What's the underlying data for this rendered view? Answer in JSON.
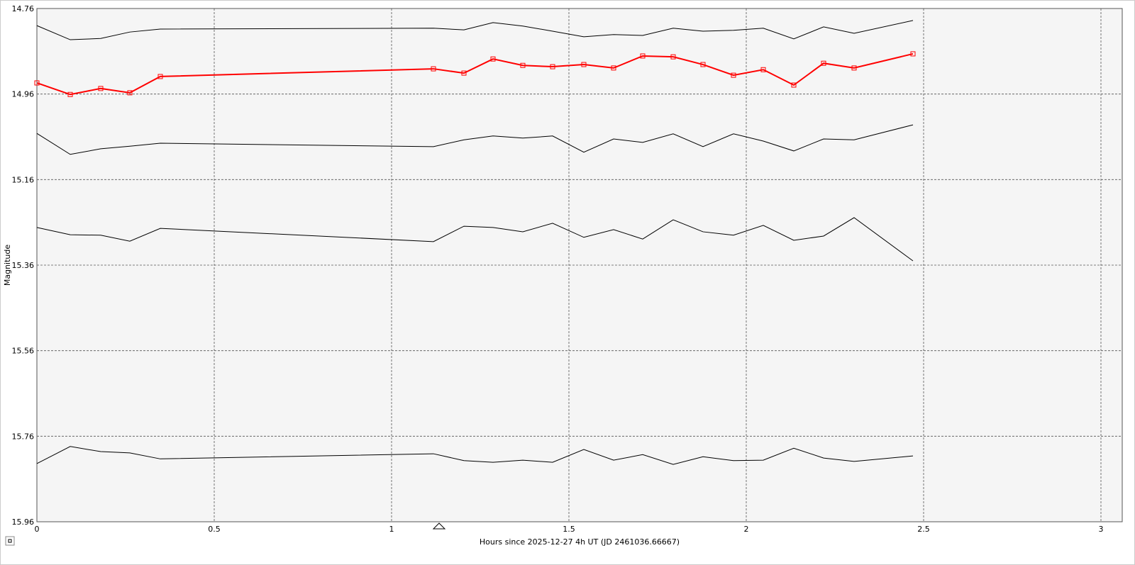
{
  "chart_data": {
    "type": "line",
    "xlabel": "Hours since 2025-12-27 4h UT (JD 2461036.66667)",
    "ylabel": "Magnitude",
    "xlim": [
      0,
      3
    ],
    "xticks": [
      0,
      0.5,
      1,
      1.5,
      2,
      2.5,
      3
    ],
    "ylim": [
      14.76,
      15.96
    ],
    "yticks": [
      14.76,
      14.96,
      15.16,
      15.36,
      15.56,
      15.76,
      15.96
    ],
    "y_inverted": true,
    "grid": true,
    "x": [
      0,
      0.094,
      0.18,
      0.262,
      0.348,
      1.118,
      1.204,
      1.286,
      1.37,
      1.454,
      1.542,
      1.626,
      1.708,
      1.794,
      1.878,
      1.964,
      2.048,
      2.134,
      2.218,
      2.304,
      2.47
    ],
    "series": [
      {
        "color": "#000000",
        "markers": false,
        "values": [
          14.8,
          14.833,
          14.83,
          14.815,
          14.808,
          14.806,
          14.81,
          14.793,
          14.801,
          14.813,
          14.826,
          14.821,
          14.823,
          14.806,
          14.813,
          14.811,
          14.806,
          14.831,
          14.803,
          14.818,
          14.788
        ]
      },
      {
        "color": "#ff0000",
        "markers": true,
        "values": [
          14.934,
          14.961,
          14.947,
          14.957,
          14.919,
          14.901,
          14.911,
          14.878,
          14.893,
          14.896,
          14.891,
          14.899,
          14.871,
          14.873,
          14.891,
          14.916,
          14.903,
          14.939,
          14.888,
          14.899,
          14.866
        ]
      },
      {
        "color": "#000000",
        "markers": false,
        "values": [
          15.052,
          15.101,
          15.088,
          15.082,
          15.075,
          15.083,
          15.067,
          15.058,
          15.063,
          15.058,
          15.096,
          15.065,
          15.073,
          15.053,
          15.083,
          15.053,
          15.07,
          15.093,
          15.065,
          15.067,
          15.032
        ]
      },
      {
        "color": "#000000",
        "markers": false,
        "values": [
          15.272,
          15.289,
          15.29,
          15.304,
          15.274,
          15.305,
          15.269,
          15.272,
          15.282,
          15.262,
          15.295,
          15.277,
          15.299,
          15.254,
          15.282,
          15.29,
          15.267,
          15.302,
          15.292,
          15.249,
          15.35
        ]
      },
      {
        "color": "#000000",
        "markers": false,
        "values": [
          15.824,
          15.784,
          15.796,
          15.799,
          15.813,
          15.801,
          15.817,
          15.821,
          15.816,
          15.821,
          15.791,
          15.816,
          15.803,
          15.826,
          15.808,
          15.817,
          15.816,
          15.788,
          15.811,
          15.819,
          15.806
        ]
      }
    ]
  }
}
